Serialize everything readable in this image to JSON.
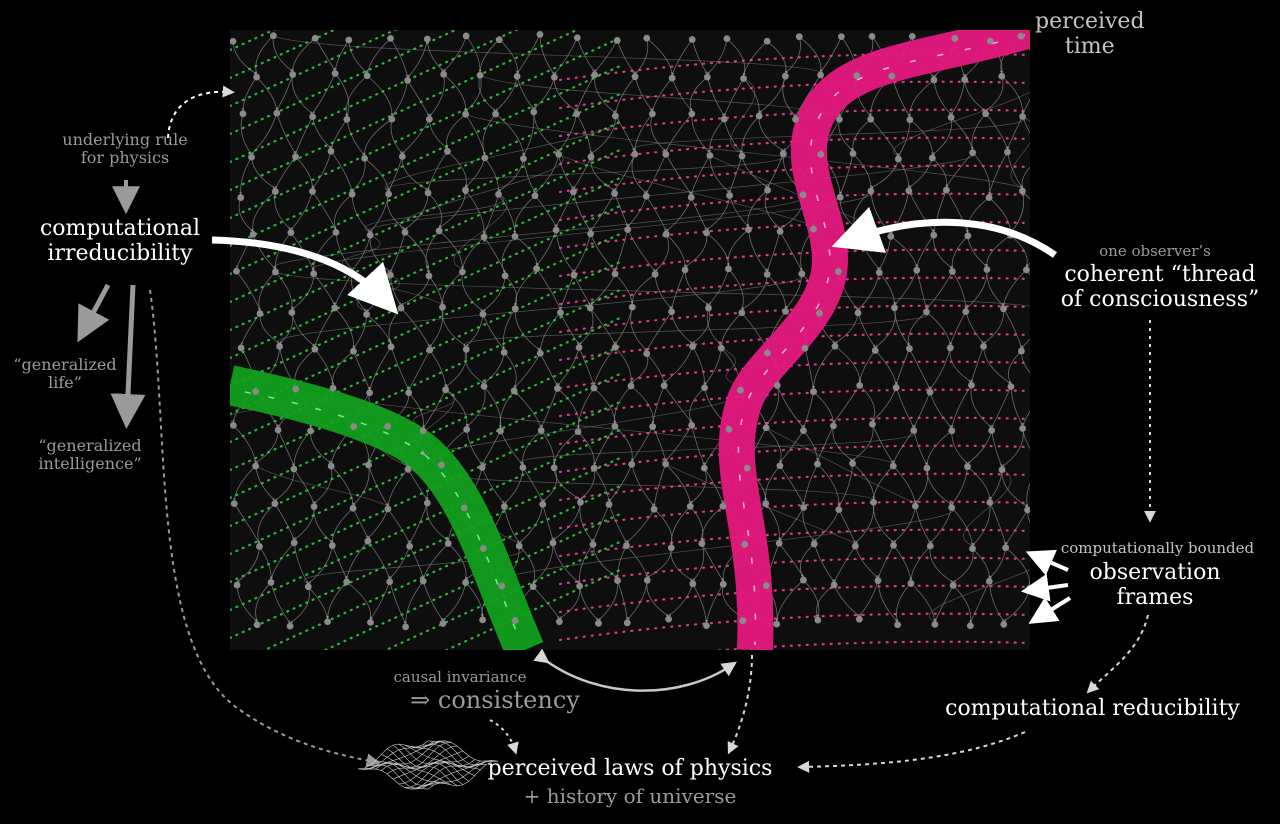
{
  "labels": {
    "perceived_time": [
      "perceived",
      "time"
    ],
    "underlying_rule": [
      "underlying rule",
      "for physics"
    ],
    "comp_irreducibility": [
      "computational",
      "irreducibility"
    ],
    "generalized_life": [
      "“generalized",
      "life”"
    ],
    "generalized_intelligence": [
      "“generalized",
      "intelligence”"
    ],
    "one_observer": "one observer’s",
    "thread": [
      "coherent “thread",
      "of consciousness”"
    ],
    "comp_bounded": "computationally bounded",
    "observation_frames": [
      "observation",
      "frames"
    ],
    "causal_invariance": "causal invariance",
    "consistency": "⇒ consistency",
    "comp_reducibility": "computational reducibility",
    "perceived_laws": "perceived laws of physics",
    "history": "+ history of universe"
  },
  "colors": {
    "background": "#000000",
    "panel": "#0e0e0e",
    "graph_edge": "#8c8c8c",
    "graph_node": "#8a8a8a",
    "green_thread": "#12a01e",
    "green_dots": "#2fd23a",
    "magenta_thread": "#e6197f",
    "magenta_dots": "#ff3fa6",
    "arrow_white": "#ffffff",
    "arrow_gray": "#9a9a9a"
  },
  "icons": {
    "surface": "wireframe-surface-icon"
  }
}
